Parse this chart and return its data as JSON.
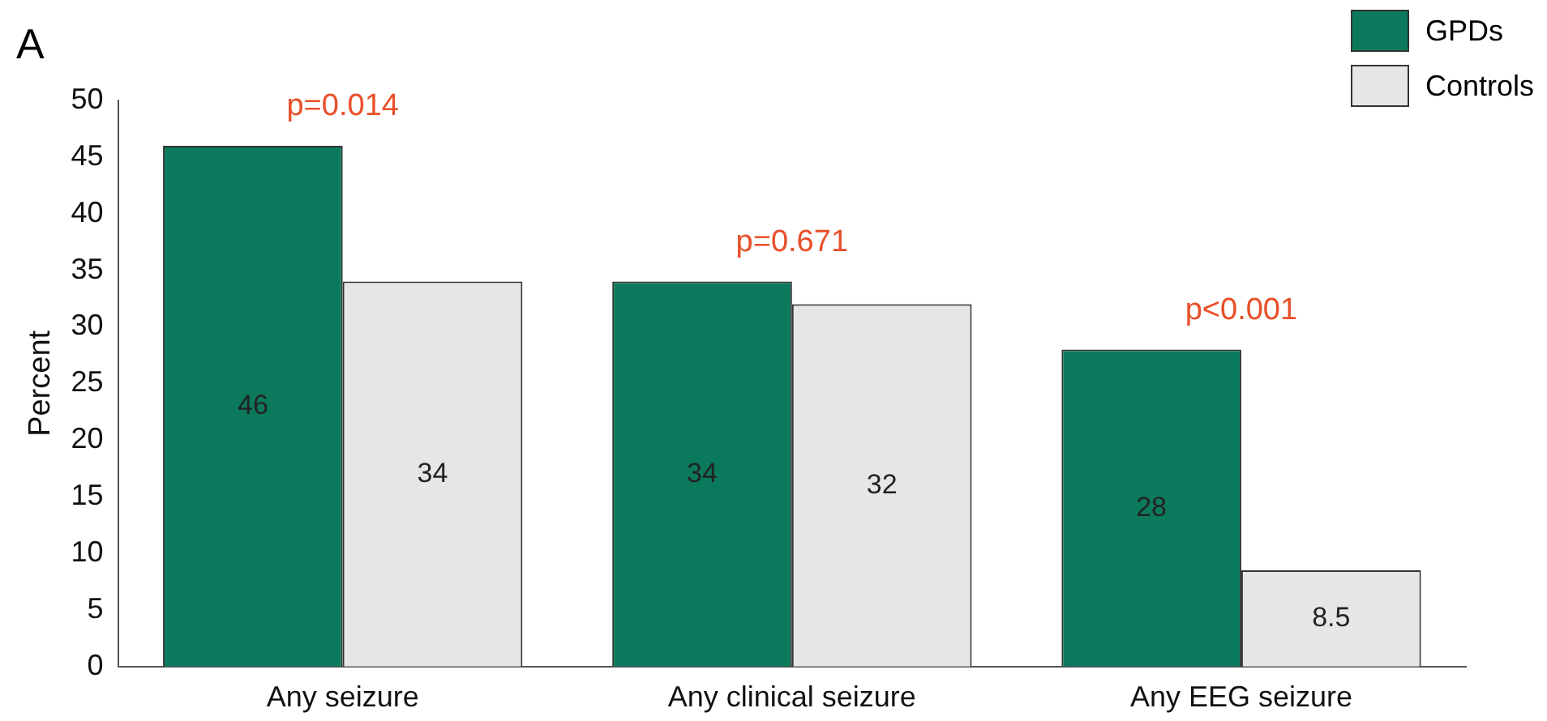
{
  "chart_data": {
    "type": "bar",
    "ylabel": "Percent",
    "categories": [
      "Any seizure",
      "Any clinical seizure",
      "Any EEG seizure"
    ],
    "series": [
      {
        "name": "GPDs",
        "color": "#0b7a5c",
        "values": [
          46,
          34,
          28
        ]
      },
      {
        "name": "Controls",
        "color": "#e6e6e6",
        "values": [
          34,
          32,
          8.5
        ]
      }
    ],
    "ylim": [
      0,
      50
    ],
    "yticks": [
      0,
      5,
      10,
      15,
      20,
      25,
      30,
      35,
      40,
      45,
      50
    ],
    "grid": false,
    "legend": "top right",
    "data_labels": true,
    "annotations": [
      "A",
      "p=0.014",
      "p=0.671",
      "p<0.001"
    ]
  }
}
